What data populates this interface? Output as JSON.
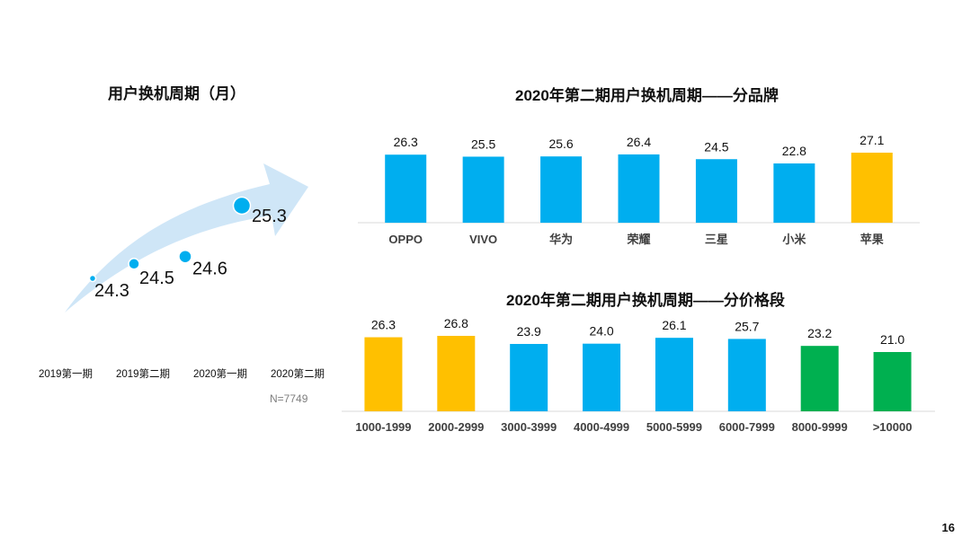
{
  "page": {
    "number": "16"
  },
  "left_chart_title": "用户换机周期（月）",
  "sample_size": "N=7749",
  "brand_chart_title": "2020年第二期用户换机周期——分品牌",
  "price_chart_title": "2020年第二期用户换机周期——分价格段",
  "colors": {
    "blue": "#00AEEF",
    "orange": "#FFC000",
    "green": "#00B050",
    "arrow": "#cfe6f7",
    "axis": "#d9d9d9",
    "dot_ring": "#ffffff"
  },
  "chart_data": [
    {
      "type": "scatter",
      "title": "用户换机周期（月）",
      "categories": [
        "2019第一期",
        "2019第二期",
        "2020第一期",
        "2020第二期"
      ],
      "values": [
        24.3,
        24.5,
        24.6,
        25.3
      ],
      "decoration": "rising-arrow"
    },
    {
      "type": "bar",
      "title": "2020年第二期用户换机周期——分品牌",
      "categories": [
        "OPPO",
        "VIVO",
        "华为",
        "荣耀",
        "三星",
        "小米",
        "苹果"
      ],
      "values": [
        26.3,
        25.5,
        25.6,
        26.4,
        24.5,
        22.8,
        27.1
      ],
      "value_labels": [
        "26.3",
        "25.5",
        "25.6",
        "26.4",
        "24.5",
        "22.8",
        "27.1"
      ],
      "bar_colors": [
        "blue",
        "blue",
        "blue",
        "blue",
        "blue",
        "blue",
        "orange"
      ]
    },
    {
      "type": "bar",
      "title": "2020年第二期用户换机周期——分价格段",
      "categories": [
        "1000-1999",
        "2000-2999",
        "3000-3999",
        "4000-4999",
        "5000-5999",
        "6000-7999",
        "8000-9999",
        ">10000"
      ],
      "values": [
        26.3,
        26.8,
        23.9,
        24.0,
        26.1,
        25.7,
        23.2,
        21.0
      ],
      "value_labels": [
        "26.3",
        "26.8",
        "23.9",
        "24.0",
        "26.1",
        "25.7",
        "23.2",
        "21.0"
      ],
      "bar_colors": [
        "orange",
        "orange",
        "blue",
        "blue",
        "blue",
        "blue",
        "green",
        "green"
      ]
    }
  ]
}
